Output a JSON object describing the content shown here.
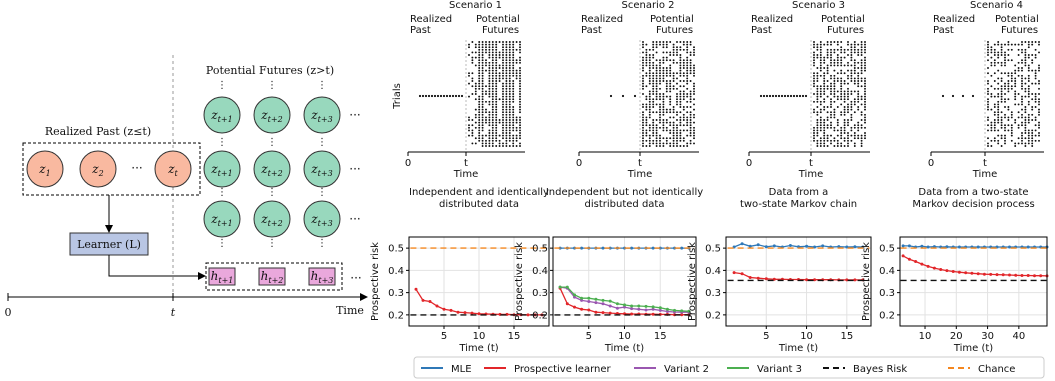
{
  "diagram": {
    "futures_title": "Potential Futures (z>t)",
    "past_title": "Realized Past (z≤t)",
    "learner_label": "Learner (L)",
    "axis_zero": "0",
    "axis_t": "t",
    "axis_time": "Time",
    "past_nodes": [
      "z1",
      "z2",
      "zt"
    ],
    "future_nodes": [
      "zt+1",
      "zt+2",
      "zt+3"
    ],
    "hyp_nodes": [
      "ht+1",
      "ht+2",
      "ht+3"
    ],
    "ellipsis": "···",
    "vdots": "⋮",
    "colors": {
      "past": "#f9b9a0",
      "future": "#98d8bd",
      "learner": "#b9c6e4",
      "hyp": "#eaa8dc"
    }
  },
  "chart_data": [
    {
      "type": "scatter",
      "title": "Scenario 1",
      "ylabel": "Trials",
      "xlabel": "Time",
      "xticks": [
        "0",
        "t"
      ],
      "region_labels": [
        "Realized Past",
        "Potential Futures"
      ]
    },
    {
      "type": "scatter",
      "title": "Scenario 2",
      "xlabel": "Time",
      "xticks": [
        "0",
        "t"
      ],
      "region_labels": [
        "Realized Past",
        "Potential Futures"
      ]
    },
    {
      "type": "scatter",
      "title": "Scenario 3",
      "xlabel": "Time",
      "xticks": [
        "0",
        "t"
      ],
      "region_labels": [
        "Realized Past",
        "Potential Futures"
      ]
    },
    {
      "type": "scatter",
      "title": "Scenario 4",
      "xlabel": "Time",
      "xticks": [
        "0",
        "t"
      ],
      "region_labels": [
        "Realized Past",
        "Potential Futures"
      ]
    },
    {
      "type": "line",
      "title": "Independent and identically distributed data",
      "xlabel": "Time (t)",
      "ylabel": "Prospective risk",
      "xlim": [
        0,
        20
      ],
      "ylim": [
        0.15,
        0.55
      ],
      "xticks": [
        5,
        10,
        15
      ],
      "yticks": [
        0.2,
        0.3,
        0.4,
        0.5
      ],
      "grid": true,
      "series": [
        {
          "name": "Prospective learner",
          "x": [
            1,
            2,
            3,
            4,
            5,
            6,
            7,
            8,
            9,
            10,
            11,
            12,
            13,
            14,
            15,
            16,
            17,
            18,
            19
          ],
          "values": [
            0.315,
            0.265,
            0.26,
            0.24,
            0.225,
            0.22,
            0.212,
            0.21,
            0.208,
            0.205,
            0.204,
            0.203,
            0.202,
            0.202,
            0.201,
            0.201,
            0.2,
            0.2,
            0.2
          ]
        },
        {
          "name": "Bayes Risk",
          "x": [
            1,
            19
          ],
          "values": [
            0.2,
            0.2
          ]
        },
        {
          "name": "Chance",
          "x": [
            1,
            19
          ],
          "values": [
            0.5,
            0.5
          ]
        }
      ]
    },
    {
      "type": "line",
      "title": "Independent but not identically distributed data",
      "xlabel": "Time (t)",
      "ylabel": "Prospective risk",
      "xlim": [
        0,
        20
      ],
      "ylim": [
        0.15,
        0.55
      ],
      "xticks": [
        5,
        10,
        15
      ],
      "yticks": [
        0.2,
        0.3,
        0.4,
        0.5
      ],
      "grid": true,
      "series": [
        {
          "name": "MLE",
          "x": [
            1,
            2,
            3,
            4,
            5,
            6,
            7,
            8,
            9,
            10,
            11,
            12,
            13,
            14,
            15,
            16,
            17,
            18,
            19
          ],
          "values": [
            0.5,
            0.5,
            0.5,
            0.5,
            0.5,
            0.5,
            0.5,
            0.5,
            0.5,
            0.5,
            0.5,
            0.5,
            0.5,
            0.5,
            0.5,
            0.5,
            0.5,
            0.5,
            0.5
          ]
        },
        {
          "name": "Prospective learner",
          "x": [
            1,
            2,
            3,
            4,
            5,
            6,
            7,
            8,
            9,
            10,
            11,
            12,
            13,
            14,
            15,
            16,
            17,
            18,
            19
          ],
          "values": [
            0.32,
            0.25,
            0.235,
            0.225,
            0.222,
            0.212,
            0.21,
            0.208,
            0.206,
            0.205,
            0.204,
            0.204,
            0.203,
            0.203,
            0.202,
            0.202,
            0.201,
            0.201,
            0.201
          ]
        },
        {
          "name": "Variant 2",
          "x": [
            1,
            2,
            3,
            4,
            5,
            6,
            7,
            8,
            9,
            10,
            11,
            12,
            13,
            14,
            15,
            16,
            17,
            18,
            19
          ],
          "values": [
            0.325,
            0.32,
            0.28,
            0.265,
            0.26,
            0.255,
            0.25,
            0.24,
            0.23,
            0.235,
            0.228,
            0.225,
            0.222,
            0.225,
            0.22,
            0.215,
            0.213,
            0.212,
            0.212
          ]
        },
        {
          "name": "Variant 3",
          "x": [
            1,
            2,
            3,
            4,
            5,
            6,
            7,
            8,
            9,
            10,
            11,
            12,
            13,
            14,
            15,
            16,
            17,
            18,
            19
          ],
          "values": [
            0.325,
            0.325,
            0.29,
            0.275,
            0.275,
            0.27,
            0.265,
            0.262,
            0.25,
            0.245,
            0.24,
            0.24,
            0.238,
            0.236,
            0.232,
            0.225,
            0.22,
            0.218,
            0.216
          ]
        },
        {
          "name": "Bayes Risk",
          "x": [
            1,
            19
          ],
          "values": [
            0.2,
            0.2
          ]
        },
        {
          "name": "Chance",
          "x": [
            1,
            19
          ],
          "values": [
            0.5,
            0.5
          ]
        }
      ]
    },
    {
      "type": "line",
      "title": "Data from a two-state Markov chain",
      "xlabel": "Time (t)",
      "ylabel": "Prospective risk",
      "xlim": [
        0,
        18
      ],
      "ylim": [
        0.15,
        0.55
      ],
      "xticks": [
        5,
        10,
        15
      ],
      "yticks": [
        0.2,
        0.3,
        0.4,
        0.5
      ],
      "grid": true,
      "series": [
        {
          "name": "MLE",
          "x": [
            1,
            2,
            3,
            4,
            5,
            6,
            7,
            8,
            9,
            10,
            11,
            12,
            13,
            14,
            15,
            16,
            17
          ],
          "values": [
            0.505,
            0.52,
            0.508,
            0.515,
            0.506,
            0.51,
            0.505,
            0.512,
            0.506,
            0.508,
            0.505,
            0.51,
            0.505,
            0.507,
            0.505,
            0.506,
            0.505
          ]
        },
        {
          "name": "Prospective learner",
          "x": [
            1,
            2,
            3,
            4,
            5,
            6,
            7,
            8,
            9,
            10,
            11,
            12,
            13,
            14,
            15,
            16,
            17
          ],
          "values": [
            0.39,
            0.385,
            0.368,
            0.365,
            0.362,
            0.36,
            0.36,
            0.359,
            0.359,
            0.358,
            0.358,
            0.358,
            0.358,
            0.357,
            0.357,
            0.357,
            0.357
          ]
        },
        {
          "name": "Bayes Risk",
          "x": [
            1,
            17
          ],
          "values": [
            0.355,
            0.355
          ]
        },
        {
          "name": "Chance",
          "x": [
            1,
            17
          ],
          "values": [
            0.5,
            0.5
          ]
        }
      ]
    },
    {
      "type": "line",
      "title": "Data from a two-state Markov decision process",
      "xlabel": "Time (t)",
      "ylabel": "Prospective risk",
      "xlim": [
        2,
        49
      ],
      "ylim": [
        0.15,
        0.55
      ],
      "xticks": [
        10,
        20,
        30,
        40
      ],
      "yticks": [
        0.2,
        0.3,
        0.4,
        0.5
      ],
      "grid": true,
      "series": [
        {
          "name": "MLE",
          "x": [
            3,
            5,
            7,
            9,
            11,
            13,
            15,
            17,
            19,
            21,
            23,
            25,
            27,
            29,
            31,
            33,
            35,
            37,
            39,
            41,
            43,
            45,
            47,
            49
          ],
          "values": [
            0.51,
            0.51,
            0.505,
            0.508,
            0.505,
            0.507,
            0.505,
            0.506,
            0.505,
            0.505,
            0.505,
            0.505,
            0.505,
            0.505,
            0.505,
            0.505,
            0.505,
            0.505,
            0.505,
            0.505,
            0.505,
            0.505,
            0.505,
            0.505
          ]
        },
        {
          "name": "Prospective learner",
          "x": [
            3,
            5,
            7,
            9,
            11,
            13,
            15,
            17,
            19,
            21,
            23,
            25,
            27,
            29,
            31,
            33,
            35,
            37,
            39,
            41,
            43,
            45,
            47,
            49
          ],
          "values": [
            0.465,
            0.45,
            0.44,
            0.428,
            0.418,
            0.41,
            0.404,
            0.399,
            0.395,
            0.392,
            0.389,
            0.387,
            0.385,
            0.383,
            0.382,
            0.381,
            0.38,
            0.379,
            0.378,
            0.377,
            0.377,
            0.376,
            0.376,
            0.375
          ]
        },
        {
          "name": "Bayes Risk",
          "x": [
            3,
            49
          ],
          "values": [
            0.355,
            0.355
          ]
        },
        {
          "name": "Chance",
          "x": [
            3,
            49
          ],
          "values": [
            0.5,
            0.5
          ]
        }
      ]
    }
  ],
  "legend": [
    {
      "name": "MLE",
      "color": "#2f78b7",
      "dash": ""
    },
    {
      "name": "Prospective learner",
      "color": "#e2262a",
      "dash": ""
    },
    {
      "name": "Variant 2",
      "color": "#9a57b0",
      "dash": ""
    },
    {
      "name": "Variant 3",
      "color": "#4caf50",
      "dash": ""
    },
    {
      "name": "Bayes Risk",
      "color": "#111111",
      "dash": "6,4"
    },
    {
      "name": "Chance",
      "color": "#f5871f",
      "dash": "6,4"
    }
  ]
}
